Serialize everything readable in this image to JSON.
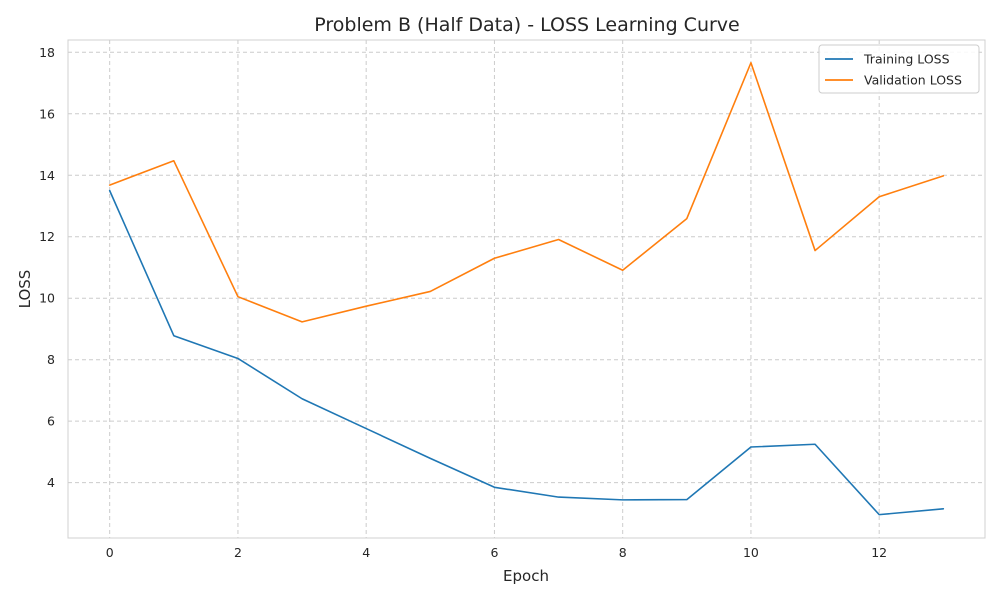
{
  "chart_data": {
    "type": "line",
    "title": "Problem B (Half Data) - LOSS Learning Curve",
    "xlabel": "Epoch",
    "ylabel": "LOSS",
    "x": [
      0,
      1,
      2,
      3,
      4,
      5,
      6,
      7,
      8,
      9,
      10,
      11,
      12,
      13
    ],
    "xlim": [
      -0.65,
      13.65
    ],
    "ylim": [
      2.2,
      18.4
    ],
    "xticks": [
      0,
      2,
      4,
      6,
      8,
      10,
      12
    ],
    "yticks": [
      4,
      6,
      8,
      10,
      12,
      14,
      16,
      18
    ],
    "grid": true,
    "legend_position": "top-right",
    "series": [
      {
        "name": "Training LOSS",
        "color": "#1f77b4",
        "values": [
          13.5,
          8.78,
          8.04,
          6.73,
          5.76,
          4.79,
          3.85,
          3.53,
          3.44,
          3.45,
          5.16,
          5.25,
          2.96,
          3.15
        ]
      },
      {
        "name": "Validation LOSS",
        "color": "#ff7f0e",
        "values": [
          13.68,
          14.47,
          10.05,
          9.23,
          9.74,
          10.22,
          11.3,
          11.91,
          10.91,
          12.59,
          17.66,
          11.55,
          13.3,
          13.98
        ]
      }
    ]
  }
}
